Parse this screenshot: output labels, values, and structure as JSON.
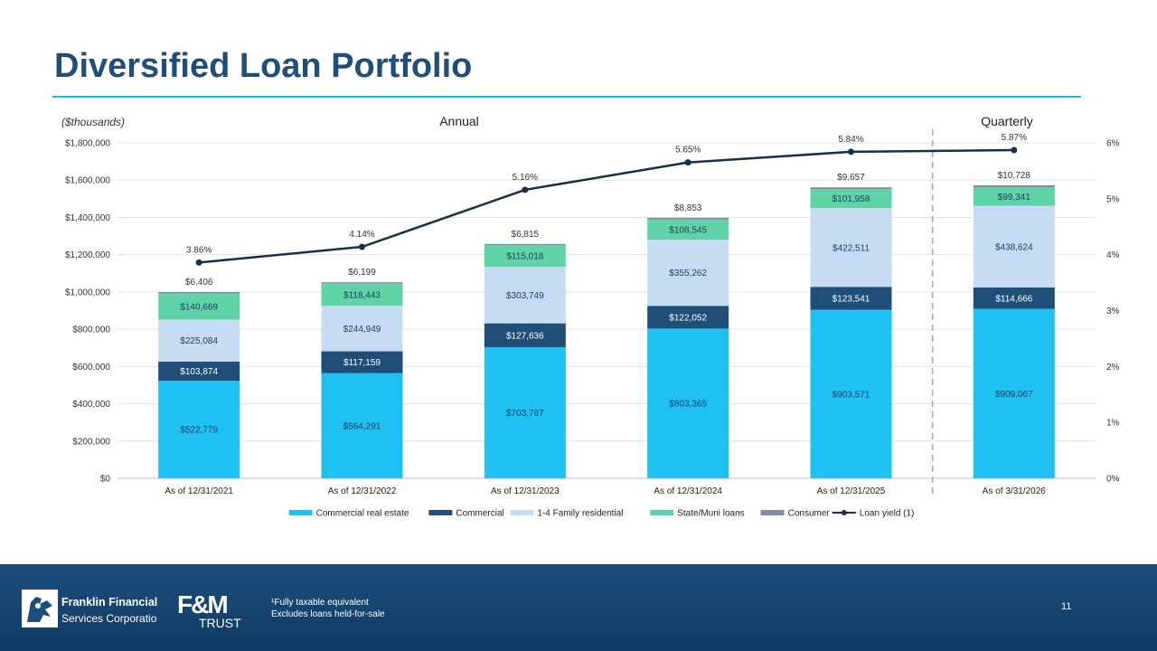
{
  "page": {
    "title": "Diversified Loan Portfolio",
    "page_number": "11",
    "footnotes": [
      "¹Fully taxable equivalent",
      "Excludes loans held-for-sale"
    ],
    "logos": {
      "company_line1": "Franklin Financial",
      "company_line2": "Services Corporation",
      "fm_text": "F&M",
      "fm_sub": "TRUST"
    }
  },
  "chart_data": {
    "type": "bar",
    "stacked": true,
    "units_note": "($thousands)",
    "section_labels": [
      "Annual",
      "Quarterly"
    ],
    "categories": [
      "As of 12/31/2021",
      "As of 12/31/2022",
      "As of 12/31/2023",
      "As of 12/31/2024",
      "As of 12/31/2025",
      "As of 3/31/2026"
    ],
    "series": [
      {
        "name": "Commercial real estate",
        "color": "#1fc0f2",
        "label_color": "#1f3f66",
        "values": [
          522779,
          564291,
          703767,
          803365,
          903571,
          909067
        ],
        "labels": [
          "$522,779",
          "$564,291",
          "$703,767",
          "$803,365",
          "$903,571",
          "$909,067"
        ]
      },
      {
        "name": "Commercial",
        "color": "#1f4e79",
        "label_color": "#ffffff",
        "values": [
          103874,
          117159,
          127636,
          122052,
          123541,
          114666
        ],
        "labels": [
          "$103,874",
          "$117,159",
          "$127,636",
          "$122,052",
          "$123,541",
          "$114,666"
        ]
      },
      {
        "name": "1-4 Family residential",
        "color": "#c6dcf2",
        "label_color": "#1f3f66",
        "values": [
          225084,
          244949,
          303749,
          355262,
          422511,
          438624
        ],
        "labels": [
          "$225,084",
          "$244,949",
          "$303,749",
          "$355,262",
          "$422,511",
          "$438,624"
        ]
      },
      {
        "name": "State/Muni loans",
        "color": "#5fd3a6",
        "label_color": "#1f3f66",
        "values": [
          140669,
          118443,
          115018,
          108545,
          101958,
          99341
        ],
        "labels": [
          "$140,669",
          "$118,443",
          "$115,018",
          "$108,545",
          "$101,958",
          "$99,341"
        ]
      },
      {
        "name": "Consumer",
        "color": "#7f8ea3",
        "label_color": "#1f3f66",
        "values": [
          6406,
          6199,
          6815,
          8853,
          9657,
          10728
        ],
        "labels": [
          "$6,406",
          "$6,199",
          "$6,815",
          "$8,853",
          "$9,657",
          "$10,728"
        ]
      }
    ],
    "line_series": {
      "name": "Loan yield (1)",
      "color": "#14304f",
      "axis": "right",
      "values": [
        3.86,
        4.14,
        5.16,
        5.65,
        5.84,
        5.87
      ],
      "labels": [
        "3.86%",
        "4.14%",
        "5.16%",
        "5.65%",
        "5.84%",
        "5.87%"
      ]
    },
    "y_axis_left": {
      "min": 0,
      "max": 1800000,
      "ticks": [
        "$0",
        "$200,000",
        "$400,000",
        "$600,000",
        "$800,000",
        "$1,000,000",
        "$1,200,000",
        "$1,400,000",
        "$1,600,000",
        "$1,800,000"
      ]
    },
    "y_axis_right": {
      "min": 0,
      "max": 6,
      "ticks": [
        "0%",
        "1%",
        "2%",
        "3%",
        "4%",
        "5%",
        "6%"
      ]
    },
    "legend": {
      "position": "bottom"
    },
    "grid": true,
    "divider": "dashed line between annual and quarterly periods"
  }
}
